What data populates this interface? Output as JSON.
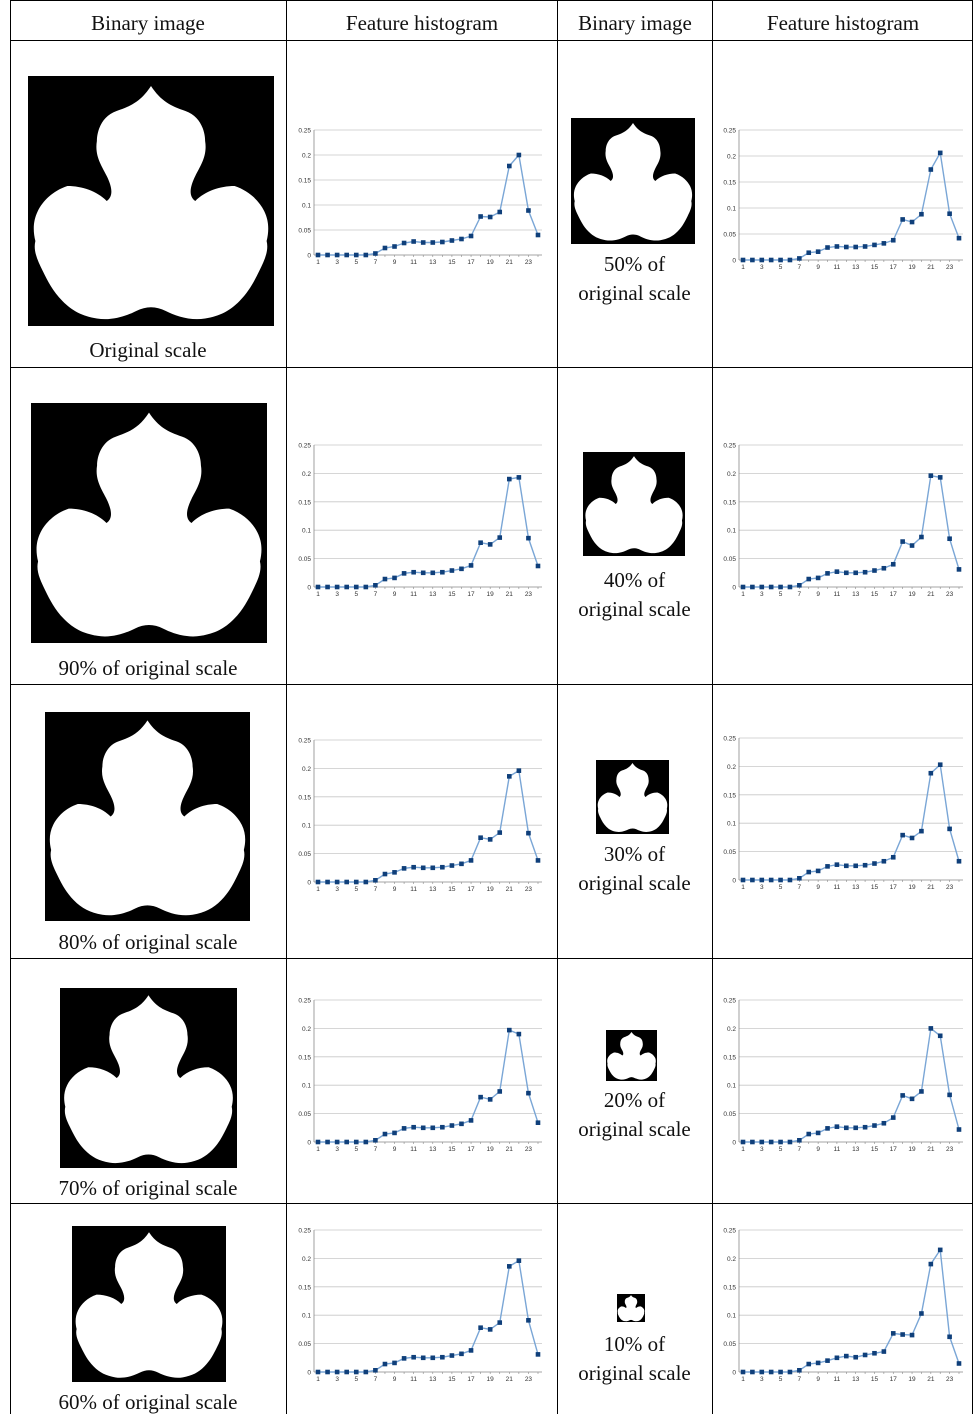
{
  "table": {
    "headers": [
      "Binary image",
      "Feature histogram",
      "Binary image",
      "Feature histogram"
    ],
    "left_captions": [
      "Original scale",
      "90% of original scale",
      "80% of original scale",
      "70% of original scale",
      "60% of original scale"
    ],
    "right_captions": [
      {
        "line1": "50% of",
        "line2": "original scale"
      },
      {
        "line1": "40% of",
        "line2": "original scale"
      },
      {
        "line1": "30% of",
        "line2": "original scale"
      },
      {
        "line1": "20% of",
        "line2": "original scale"
      },
      {
        "line1": "10% of",
        "line2": "original scale"
      }
    ]
  },
  "chart_data": [
    {
      "type": "line",
      "label": "Original scale",
      "x": [
        1,
        2,
        3,
        4,
        5,
        6,
        7,
        8,
        9,
        10,
        11,
        12,
        13,
        14,
        15,
        16,
        17,
        18,
        19,
        20,
        21,
        22,
        23,
        24
      ],
      "y_ticks": [
        "0",
        "0.05",
        "0.1",
        "0.15",
        "0.2",
        "0.25"
      ],
      "x_ticks": [
        "1",
        "3",
        "5",
        "7",
        "9",
        "11",
        "13",
        "15",
        "17",
        "19",
        "21",
        "23"
      ],
      "ylim": [
        0,
        0.25
      ],
      "color": "#7aa6d6",
      "marker_color": "#0f3f7a",
      "values": [
        0,
        0,
        0,
        0,
        0,
        0,
        0.003,
        0.014,
        0.017,
        0.024,
        0.027,
        0.025,
        0.025,
        0.026,
        0.029,
        0.032,
        0.038,
        0.077,
        0.076,
        0.086,
        0.178,
        0.2,
        0.089,
        0.04
      ]
    },
    {
      "type": "line",
      "label": "90% of original scale",
      "x": [
        1,
        2,
        3,
        4,
        5,
        6,
        7,
        8,
        9,
        10,
        11,
        12,
        13,
        14,
        15,
        16,
        17,
        18,
        19,
        20,
        21,
        22,
        23,
        24
      ],
      "y_ticks": [
        "0",
        "0.05",
        "0.1",
        "0.15",
        "0.2",
        "0.25"
      ],
      "x_ticks": [
        "1",
        "3",
        "5",
        "7",
        "9",
        "11",
        "13",
        "15",
        "17",
        "19",
        "21",
        "23"
      ],
      "ylim": [
        0,
        0.25
      ],
      "color": "#7aa6d6",
      "marker_color": "#0f3f7a",
      "values": [
        0,
        0,
        0,
        0,
        0,
        0,
        0.003,
        0.014,
        0.016,
        0.024,
        0.026,
        0.025,
        0.025,
        0.026,
        0.029,
        0.032,
        0.038,
        0.078,
        0.075,
        0.087,
        0.19,
        0.193,
        0.086,
        0.037
      ]
    },
    {
      "type": "line",
      "label": "80% of original scale",
      "x": [
        1,
        2,
        3,
        4,
        5,
        6,
        7,
        8,
        9,
        10,
        11,
        12,
        13,
        14,
        15,
        16,
        17,
        18,
        19,
        20,
        21,
        22,
        23,
        24
      ],
      "y_ticks": [
        "0",
        "0.05",
        "0.1",
        "0.15",
        "0.2",
        "0.25"
      ],
      "x_ticks": [
        "1",
        "3",
        "5",
        "7",
        "9",
        "11",
        "13",
        "15",
        "17",
        "19",
        "21",
        "23"
      ],
      "ylim": [
        0,
        0.25
      ],
      "color": "#7aa6d6",
      "marker_color": "#0f3f7a",
      "values": [
        0,
        0,
        0,
        0,
        0,
        0,
        0.003,
        0.014,
        0.017,
        0.024,
        0.026,
        0.025,
        0.025,
        0.026,
        0.029,
        0.032,
        0.038,
        0.078,
        0.075,
        0.087,
        0.186,
        0.196,
        0.086,
        0.038
      ]
    },
    {
      "type": "line",
      "label": "70% of original scale",
      "x": [
        1,
        2,
        3,
        4,
        5,
        6,
        7,
        8,
        9,
        10,
        11,
        12,
        13,
        14,
        15,
        16,
        17,
        18,
        19,
        20,
        21,
        22,
        23,
        24
      ],
      "y_ticks": [
        "0",
        "0.05",
        "0.1",
        "0.15",
        "0.2",
        "0.25"
      ],
      "x_ticks": [
        "1",
        "3",
        "5",
        "7",
        "9",
        "11",
        "13",
        "15",
        "17",
        "19",
        "21",
        "23"
      ],
      "ylim": [
        0,
        0.25
      ],
      "color": "#7aa6d6",
      "marker_color": "#0f3f7a",
      "values": [
        0,
        0,
        0,
        0,
        0,
        0,
        0.003,
        0.014,
        0.016,
        0.024,
        0.026,
        0.025,
        0.025,
        0.026,
        0.029,
        0.032,
        0.038,
        0.079,
        0.075,
        0.089,
        0.197,
        0.19,
        0.086,
        0.034
      ]
    },
    {
      "type": "line",
      "label": "60% of original scale",
      "x": [
        1,
        2,
        3,
        4,
        5,
        6,
        7,
        8,
        9,
        10,
        11,
        12,
        13,
        14,
        15,
        16,
        17,
        18,
        19,
        20,
        21,
        22,
        23,
        24
      ],
      "y_ticks": [
        "0",
        "0.05",
        "0.1",
        "0.15",
        "0.2",
        "0.25"
      ],
      "x_ticks": [
        "1",
        "3",
        "5",
        "7",
        "9",
        "11",
        "13",
        "15",
        "17",
        "19",
        "21",
        "23"
      ],
      "ylim": [
        0,
        0.25
      ],
      "color": "#7aa6d6",
      "marker_color": "#0f3f7a",
      "values": [
        0,
        0,
        0,
        0,
        0,
        0,
        0.003,
        0.014,
        0.016,
        0.024,
        0.026,
        0.025,
        0.025,
        0.026,
        0.029,
        0.032,
        0.038,
        0.078,
        0.075,
        0.087,
        0.186,
        0.196,
        0.091,
        0.031
      ]
    },
    {
      "type": "line",
      "label": "50% of original scale",
      "x": [
        1,
        2,
        3,
        4,
        5,
        6,
        7,
        8,
        9,
        10,
        11,
        12,
        13,
        14,
        15,
        16,
        17,
        18,
        19,
        20,
        21,
        22,
        23,
        24
      ],
      "y_ticks": [
        "0",
        "0.05",
        "0.1",
        "0.15",
        "0.2",
        "0.25"
      ],
      "x_ticks": [
        "1",
        "3",
        "5",
        "7",
        "9",
        "11",
        "13",
        "15",
        "17",
        "19",
        "21",
        "23"
      ],
      "ylim": [
        0,
        0.25
      ],
      "color": "#7aa6d6",
      "marker_color": "#0f3f7a",
      "values": [
        0,
        0,
        0,
        0,
        0,
        0,
        0.003,
        0.014,
        0.016,
        0.024,
        0.026,
        0.025,
        0.025,
        0.026,
        0.029,
        0.032,
        0.038,
        0.078,
        0.073,
        0.088,
        0.174,
        0.206,
        0.089,
        0.042
      ]
    },
    {
      "type": "line",
      "label": "40% of original scale",
      "x": [
        1,
        2,
        3,
        4,
        5,
        6,
        7,
        8,
        9,
        10,
        11,
        12,
        13,
        14,
        15,
        16,
        17,
        18,
        19,
        20,
        21,
        22,
        23,
        24
      ],
      "y_ticks": [
        "0",
        "0.05",
        "0.1",
        "0.15",
        "0.2",
        "0.25"
      ],
      "x_ticks": [
        "1",
        "3",
        "5",
        "7",
        "9",
        "11",
        "13",
        "15",
        "17",
        "19",
        "21",
        "23"
      ],
      "ylim": [
        0,
        0.25
      ],
      "color": "#7aa6d6",
      "marker_color": "#0f3f7a",
      "values": [
        0,
        0,
        0,
        0,
        0,
        0,
        0.003,
        0.014,
        0.016,
        0.024,
        0.027,
        0.025,
        0.025,
        0.026,
        0.029,
        0.033,
        0.04,
        0.08,
        0.073,
        0.088,
        0.196,
        0.193,
        0.085,
        0.031
      ]
    },
    {
      "type": "line",
      "label": "30% of original scale",
      "x": [
        1,
        2,
        3,
        4,
        5,
        6,
        7,
        8,
        9,
        10,
        11,
        12,
        13,
        14,
        15,
        16,
        17,
        18,
        19,
        20,
        21,
        22,
        23,
        24
      ],
      "y_ticks": [
        "0",
        "0.05",
        "0.1",
        "0.15",
        "0.2",
        "0.25"
      ],
      "x_ticks": [
        "1",
        "3",
        "5",
        "7",
        "9",
        "11",
        "13",
        "15",
        "17",
        "19",
        "21",
        "23"
      ],
      "ylim": [
        0,
        0.25
      ],
      "color": "#7aa6d6",
      "marker_color": "#0f3f7a",
      "values": [
        0,
        0,
        0,
        0,
        0,
        0,
        0.003,
        0.014,
        0.016,
        0.024,
        0.027,
        0.025,
        0.025,
        0.026,
        0.029,
        0.033,
        0.04,
        0.079,
        0.074,
        0.086,
        0.188,
        0.203,
        0.09,
        0.033
      ]
    },
    {
      "type": "line",
      "label": "20% of original scale",
      "x": [
        1,
        2,
        3,
        4,
        5,
        6,
        7,
        8,
        9,
        10,
        11,
        12,
        13,
        14,
        15,
        16,
        17,
        18,
        19,
        20,
        21,
        22,
        23,
        24
      ],
      "y_ticks": [
        "0",
        "0.05",
        "0.1",
        "0.15",
        "0.2",
        "0.25"
      ],
      "x_ticks": [
        "1",
        "3",
        "5",
        "7",
        "9",
        "11",
        "13",
        "15",
        "17",
        "19",
        "21",
        "23"
      ],
      "ylim": [
        0,
        0.25
      ],
      "color": "#7aa6d6",
      "marker_color": "#0f3f7a",
      "values": [
        0,
        0,
        0,
        0,
        0,
        0,
        0.003,
        0.014,
        0.016,
        0.024,
        0.027,
        0.025,
        0.025,
        0.026,
        0.029,
        0.033,
        0.043,
        0.082,
        0.076,
        0.089,
        0.2,
        0.187,
        0.083,
        0.022
      ]
    },
    {
      "type": "line",
      "label": "10% of original scale",
      "x": [
        1,
        2,
        3,
        4,
        5,
        6,
        7,
        8,
        9,
        10,
        11,
        12,
        13,
        14,
        15,
        16,
        17,
        18,
        19,
        20,
        21,
        22,
        23,
        24
      ],
      "y_ticks": [
        "0",
        "0.05",
        "0.1",
        "0.15",
        "0.2",
        "0.25"
      ],
      "x_ticks": [
        "1",
        "3",
        "5",
        "7",
        "9",
        "11",
        "13",
        "15",
        "17",
        "19",
        "21",
        "23"
      ],
      "ylim": [
        0,
        0.25
      ],
      "color": "#7aa6d6",
      "marker_color": "#0f3f7a",
      "values": [
        0,
        0,
        0,
        0,
        0,
        0,
        0.003,
        0.014,
        0.016,
        0.02,
        0.025,
        0.028,
        0.026,
        0.03,
        0.033,
        0.036,
        0.068,
        0.066,
        0.065,
        0.103,
        0.19,
        0.215,
        0.062,
        0.015
      ]
    }
  ]
}
